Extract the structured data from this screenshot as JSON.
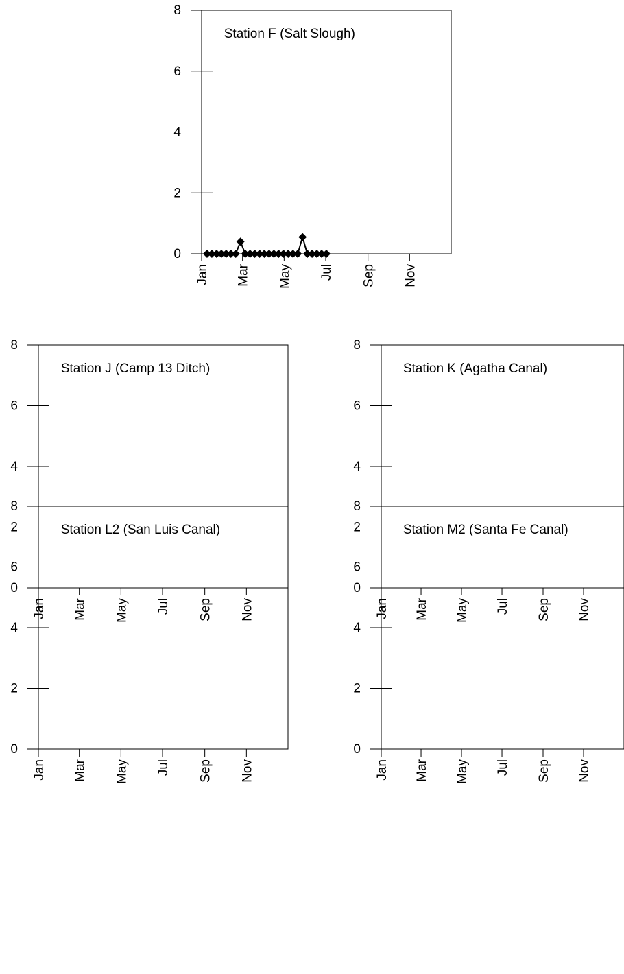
{
  "chart_data": [
    {
      "type": "line",
      "title": "Station F (Salt Slough)",
      "xlabel": "",
      "ylabel": "",
      "x_ticks": [
        "Jan",
        "Mar",
        "May",
        "Jul",
        "Sep",
        "Nov"
      ],
      "y_ticks": [
        "0",
        "2",
        "4",
        "6",
        "8"
      ],
      "xlim_days": [
        0,
        366
      ],
      "ylim": [
        0,
        8
      ],
      "grid": false,
      "series": [
        {
          "marker": "diamond",
          "color": "#000000",
          "points": [
            {
              "day": 8,
              "value": 0
            },
            {
              "day": 15,
              "value": 0
            },
            {
              "day": 22,
              "value": 0
            },
            {
              "day": 29,
              "value": 0
            },
            {
              "day": 36,
              "value": 0
            },
            {
              "day": 43,
              "value": 0
            },
            {
              "day": 50,
              "value": 0
            },
            {
              "day": 57,
              "value": 0.4
            },
            {
              "day": 64,
              "value": 0
            },
            {
              "day": 71,
              "value": 0
            },
            {
              "day": 78,
              "value": 0
            },
            {
              "day": 85,
              "value": 0
            },
            {
              "day": 92,
              "value": 0
            },
            {
              "day": 99,
              "value": 0
            },
            {
              "day": 106,
              "value": 0
            },
            {
              "day": 113,
              "value": 0
            },
            {
              "day": 120,
              "value": 0
            },
            {
              "day": 127,
              "value": 0
            },
            {
              "day": 134,
              "value": 0
            },
            {
              "day": 141,
              "value": 0
            },
            {
              "day": 148,
              "value": 0.55
            },
            {
              "day": 155,
              "value": 0
            },
            {
              "day": 162,
              "value": 0
            },
            {
              "day": 169,
              "value": 0
            },
            {
              "day": 176,
              "value": 0
            },
            {
              "day": 183,
              "value": 0
            }
          ]
        }
      ]
    },
    {
      "type": "line",
      "title": "Station J (Camp 13 Ditch)",
      "xlabel": "",
      "ylabel": "",
      "x_ticks": [
        "Jan",
        "Mar",
        "May",
        "Jul",
        "Sep",
        "Nov"
      ],
      "y_ticks": [
        "0",
        "2",
        "4",
        "6",
        "8"
      ],
      "xlim_days": [
        0,
        366
      ],
      "ylim": [
        0,
        8
      ],
      "grid": false,
      "series": []
    },
    {
      "type": "line",
      "title": "Station K (Agatha Canal)",
      "xlabel": "",
      "ylabel": "",
      "x_ticks": [
        "Jan",
        "Mar",
        "May",
        "Jul",
        "Sep",
        "Nov"
      ],
      "y_ticks": [
        "0",
        "2",
        "4",
        "6",
        "8"
      ],
      "xlim_days": [
        0,
        366
      ],
      "ylim": [
        0,
        8
      ],
      "grid": false,
      "series": []
    },
    {
      "type": "line",
      "title": "Station L2 (San Luis Canal)",
      "xlabel": "",
      "ylabel": "",
      "x_ticks": [
        "Jan",
        "Mar",
        "May",
        "Jul",
        "Sep",
        "Nov"
      ],
      "y_ticks": [
        "0",
        "2",
        "4",
        "6",
        "8"
      ],
      "xlim_days": [
        0,
        366
      ],
      "ylim": [
        0,
        8
      ],
      "grid": false,
      "series": []
    },
    {
      "type": "line",
      "title": "Station M2 (Santa Fe Canal)",
      "xlabel": "",
      "ylabel": "",
      "x_ticks": [
        "Jan",
        "Mar",
        "May",
        "Jul",
        "Sep",
        "Nov"
      ],
      "y_ticks": [
        "0",
        "2",
        "4",
        "6",
        "8"
      ],
      "xlim_days": [
        0,
        366
      ],
      "ylim": [
        0,
        8
      ],
      "grid": false,
      "series": []
    }
  ]
}
